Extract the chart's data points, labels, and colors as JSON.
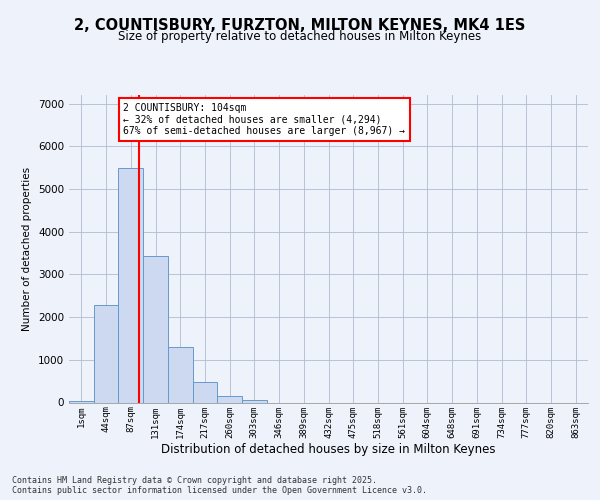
{
  "title_line1": "2, COUNTISBURY, FURZTON, MILTON KEYNES, MK4 1ES",
  "title_line2": "Size of property relative to detached houses in Milton Keynes",
  "xlabel": "Distribution of detached houses by size in Milton Keynes",
  "ylabel": "Number of detached properties",
  "categories": [
    "1sqm",
    "44sqm",
    "87sqm",
    "131sqm",
    "174sqm",
    "217sqm",
    "260sqm",
    "303sqm",
    "346sqm",
    "389sqm",
    "432sqm",
    "475sqm",
    "518sqm",
    "561sqm",
    "604sqm",
    "648sqm",
    "691sqm",
    "734sqm",
    "777sqm",
    "820sqm",
    "863sqm"
  ],
  "values": [
    30,
    2280,
    5500,
    3440,
    1310,
    490,
    155,
    70,
    0,
    0,
    0,
    0,
    0,
    0,
    0,
    0,
    0,
    0,
    0,
    0,
    0
  ],
  "bar_color": "#ccd9f0",
  "bar_edge_color": "#6699cc",
  "vline_x": 2.33,
  "vline_color": "red",
  "annotation_text": "2 COUNTISBURY: 104sqm\n← 32% of detached houses are smaller (4,294)\n67% of semi-detached houses are larger (8,967) →",
  "annotation_box_color": "white",
  "annotation_box_edge": "red",
  "ylim": [
    0,
    7200
  ],
  "footer": "Contains HM Land Registry data © Crown copyright and database right 2025.\nContains public sector information licensed under the Open Government Licence v3.0.",
  "bg_color": "#eef2fb",
  "plot_bg_color": "#eef2fb",
  "grid_color": "#b0bcd0"
}
